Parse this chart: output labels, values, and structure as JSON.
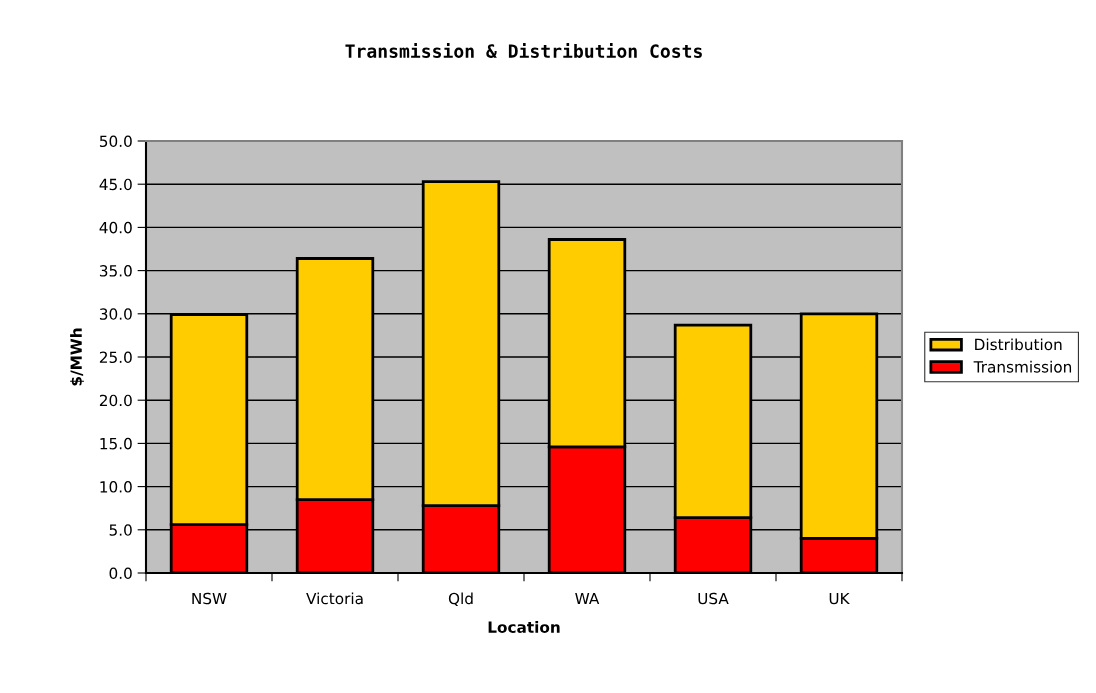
{
  "chart_data": {
    "type": "bar",
    "title": "Transmission & Distribution Costs",
    "xlabel": "Location",
    "ylabel": "$/MWh",
    "categories": [
      "NSW",
      "Victoria",
      "Qld",
      "WA",
      "USA",
      "UK"
    ],
    "stacked": true,
    "series": [
      {
        "name": "Transmission",
        "color": "#ff0000",
        "values": [
          5.6,
          8.5,
          7.8,
          14.6,
          6.4,
          4.0
        ]
      },
      {
        "name": "Distribution",
        "color": "#ffcc00",
        "values": [
          24.3,
          27.9,
          37.5,
          24.0,
          22.3,
          26.0
        ]
      }
    ],
    "ylim": [
      0,
      50
    ],
    "yticks": [
      {
        "value": 0,
        "label": "0.0"
      },
      {
        "value": 5,
        "label": "5.0"
      },
      {
        "value": 10,
        "label": "10.0"
      },
      {
        "value": 15,
        "label": "15.0"
      },
      {
        "value": 20,
        "label": "20.0"
      },
      {
        "value": 25,
        "label": "25.0"
      },
      {
        "value": 30,
        "label": "30.0"
      },
      {
        "value": 35,
        "label": "35.0"
      },
      {
        "value": 40,
        "label": "40.0"
      },
      {
        "value": 45,
        "label": "45.0"
      },
      {
        "value": 50,
        "label": "50.0"
      }
    ],
    "grid": "y",
    "legend": "right"
  }
}
